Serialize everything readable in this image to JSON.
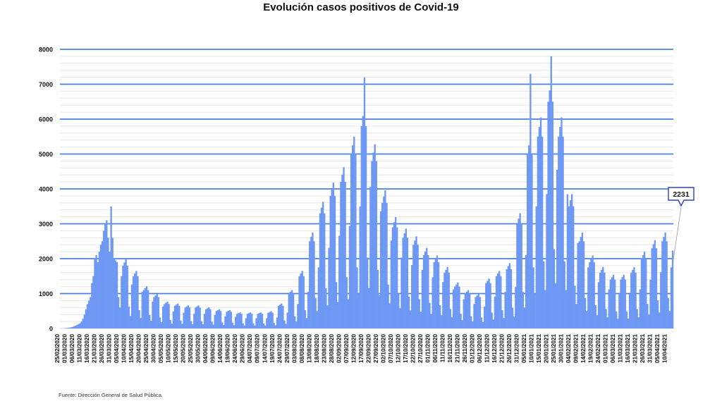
{
  "chart_data": {
    "type": "bar",
    "title": "Evolución casos positivos de Covid-19",
    "source_note": "Fuente: Dirección General de Salud Pública.",
    "xlabel": "",
    "ylabel": "",
    "x_first_date": "25/02/2020",
    "ylim": [
      0,
      8000
    ],
    "yticks": [
      0,
      1000,
      2000,
      3000,
      4000,
      5000,
      6000,
      7000,
      8000
    ],
    "grid": true,
    "legend": "none",
    "bar_color": "#6d98f3",
    "grid_color": "#4a7fe6",
    "annotation": {
      "label": "2231",
      "value": 2231
    },
    "xtick_labels": [
      "25/02/2020",
      "01/03/2020",
      "06/03/2020",
      "11/03/2020",
      "16/03/2020",
      "21/03/2020",
      "26/03/2020",
      "31/03/2020",
      "05/04/2020",
      "10/04/2020",
      "15/04/2020",
      "20/04/2020",
      "25/04/2020",
      "30/04/2020",
      "05/05/2020",
      "10/05/2020",
      "15/05/2020",
      "20/05/2020",
      "25/05/2020",
      "30/05/2020",
      "04/06/2020",
      "09/06/2020",
      "14/06/2020",
      "19/06/2020",
      "24/06/2020",
      "29/06/2020",
      "04/07/2020",
      "09/07/2020",
      "14/07/2020",
      "19/07/2020",
      "24/07/2020",
      "29/07/2020",
      "03/08/2020",
      "08/08/2020",
      "13/08/2020",
      "18/08/2020",
      "23/08/2020",
      "28/08/2020",
      "02/09/2020",
      "07/09/2020",
      "12/09/2020",
      "17/09/2020",
      "22/09/2020",
      "27/09/2020",
      "02/10/2020",
      "07/10/2020",
      "12/10/2020",
      "17/10/2020",
      "22/10/2020",
      "27/10/2020",
      "01/11/2020",
      "06/11/2020",
      "11/11/2020",
      "16/11/2020",
      "21/11/2020",
      "26/11/2020",
      "01/12/2020",
      "06/12/2020",
      "11/12/2020",
      "16/12/2020",
      "21/12/2020",
      "26/12/2020",
      "31/12/2020",
      "05/01/2021",
      "10/01/2021",
      "15/01/2021",
      "20/01/2021",
      "25/01/2021",
      "30/01/2021",
      "04/02/2021",
      "09/02/2021",
      "14/02/2021",
      "19/02/2021",
      "24/02/2021",
      "01/03/2021",
      "06/03/2021",
      "11/03/2021",
      "16/03/2021",
      "21/03/2021",
      "26/03/2021",
      "31/03/2021",
      "05/04/2021",
      "10/04/2021"
    ],
    "values": [
      1,
      2,
      4,
      8,
      12,
      18,
      25,
      35,
      45,
      60,
      80,
      100,
      120,
      150,
      200,
      280,
      400,
      550,
      700,
      800,
      900,
      1300,
      1500,
      2000,
      2100,
      1900,
      2200,
      2400,
      2500,
      2800,
      3000,
      3100,
      2600,
      2200,
      3500,
      2600,
      2000,
      1950,
      1900,
      900,
      600,
      1500,
      1800,
      1890,
      1980,
      1800,
      630,
      360,
      1260,
      1500,
      1575,
      1650,
      1500,
      525,
      300,
      1050,
      1100,
      1155,
      1210,
      1100,
      385,
      220,
      770,
      900,
      945,
      990,
      900,
      315,
      180,
      630,
      700,
      735,
      770,
      700,
      245,
      140,
      490,
      650,
      683,
      715,
      650,
      228,
      130,
      455,
      600,
      630,
      660,
      600,
      210,
      120,
      420,
      600,
      630,
      660,
      600,
      210,
      120,
      420,
      550,
      578,
      605,
      550,
      193,
      110,
      385,
      500,
      525,
      550,
      500,
      175,
      100,
      350,
      480,
      504,
      528,
      480,
      168,
      96,
      336,
      420,
      441,
      462,
      420,
      147,
      84,
      294,
      420,
      441,
      462,
      420,
      147,
      84,
      294,
      420,
      441,
      462,
      420,
      147,
      84,
      294,
      450,
      473,
      495,
      450,
      158,
      90,
      315,
      650,
      683,
      715,
      650,
      228,
      130,
      455,
      1000,
      1050,
      1100,
      1000,
      350,
      200,
      700,
      1500,
      1575,
      1650,
      1500,
      525,
      300,
      1050,
      2500,
      2625,
      2750,
      2500,
      875,
      500,
      1750,
      3300,
      3465,
      3630,
      3300,
      1155,
      660,
      2310,
      3800,
      3990,
      4180,
      3800,
      1330,
      760,
      2660,
      4200,
      4410,
      4620,
      4200,
      1470,
      840,
      2940,
      5000,
      5250,
      5500,
      5000,
      1750,
      1000,
      3500,
      5800,
      6090,
      7200,
      5800,
      2030,
      1160,
      4060,
      4800,
      5040,
      5280,
      4800,
      1680,
      960,
      3360,
      3600,
      3780,
      3960,
      3600,
      1260,
      720,
      2520,
      2900,
      3045,
      3190,
      2900,
      1015,
      580,
      2030,
      2600,
      2730,
      2860,
      2600,
      910,
      520,
      1820,
      2400,
      2520,
      2640,
      2400,
      840,
      480,
      1680,
      2100,
      2205,
      2310,
      2100,
      735,
      420,
      1470,
      1900,
      1995,
      2090,
      1900,
      665,
      380,
      1330,
      1600,
      1680,
      1760,
      1600,
      560,
      320,
      1120,
      1200,
      1260,
      1320,
      1200,
      420,
      240,
      840,
      1000,
      1050,
      1100,
      1000,
      350,
      200,
      700,
      900,
      945,
      990,
      900,
      315,
      180,
      630,
      1300,
      1365,
      1430,
      1300,
      455,
      260,
      910,
      1500,
      1575,
      1650,
      1500,
      525,
      300,
      1050,
      1700,
      1785,
      1870,
      1700,
      595,
      340,
      1190,
      3000,
      3150,
      3300,
      3000,
      1050,
      600,
      2100,
      5000,
      5250,
      7300,
      5000,
      1750,
      1000,
      3500,
      5500,
      5775,
      6050,
      5500,
      1925,
      1100,
      3850,
      6500,
      6825,
      7800,
      6500,
      2275,
      1300,
      4550,
      5500,
      5775,
      6050,
      5500,
      1925,
      1100,
      3850,
      3500,
      3675,
      3850,
      3500,
      1225,
      700,
      2450,
      2500,
      2625,
      2750,
      2500,
      875,
      500,
      1750,
      1900,
      1995,
      2090,
      1900,
      665,
      380,
      1330,
      1600,
      1680,
      1760,
      1600,
      560,
      320,
      1120,
      1400,
      1470,
      1540,
      1400,
      490,
      280,
      980,
      1400,
      1470,
      1540,
      1400,
      490,
      280,
      980,
      1600,
      1680,
      1760,
      1600,
      560,
      320,
      1120,
      2000,
      2100,
      2200,
      2000,
      700,
      400,
      1400,
      2300,
      2415,
      2530,
      2300,
      805,
      460,
      1610,
      2500,
      2625,
      2750,
      2500,
      875,
      500,
      1750,
      2231
    ]
  }
}
